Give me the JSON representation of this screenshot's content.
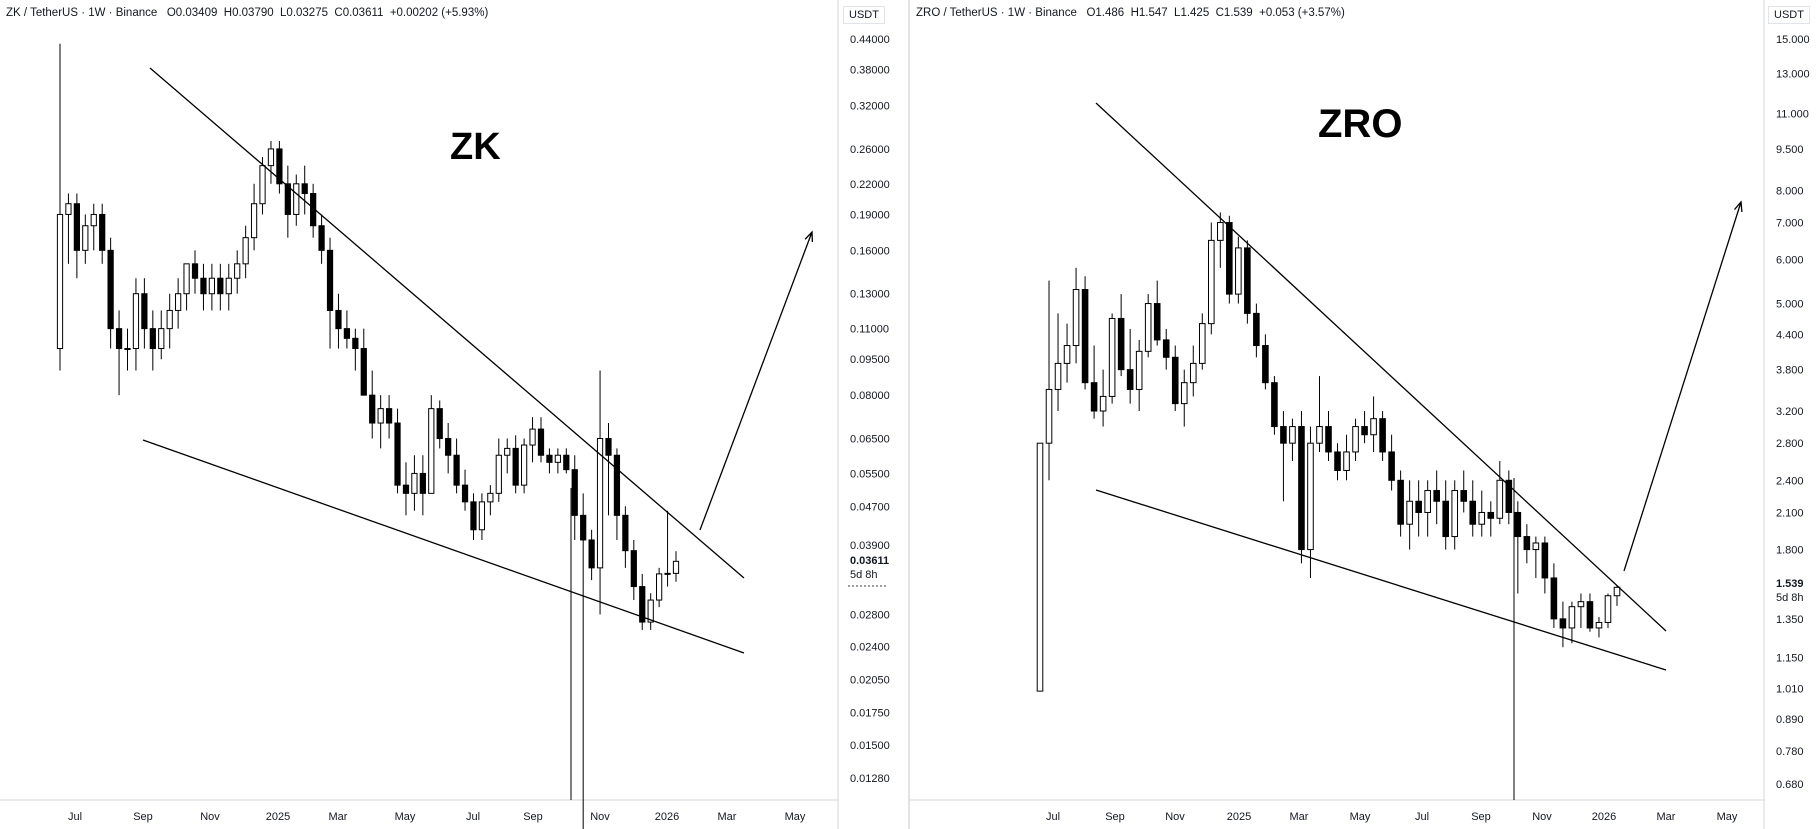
{
  "charts": [
    {
      "id": "left",
      "header": {
        "symbol": "ZK / TetherUS · 1W · Binance",
        "o": "O0.03409",
        "h": "H0.03790",
        "l": "L0.03275",
        "c": "C0.03611",
        "chg": "+0.00202 (+5.93%)"
      },
      "big_label": "ZK",
      "currency": "USDT",
      "last_price": "0.03611",
      "countdown": "5d 8h"
    },
    {
      "id": "right",
      "header": {
        "symbol": "ZRO / TetherUS · 1W · Binance",
        "o": "O1.486",
        "h": "H1.547",
        "l": "L1.425",
        "c": "C1.539",
        "chg": "+0.053 (+3.57%)"
      },
      "big_label": "ZRO",
      "currency": "USDT",
      "last_price": "1.539",
      "countdown": "5d 8h"
    }
  ],
  "chart_data": [
    {
      "type": "candlestick",
      "title": "ZK / TetherUS · 1W · Binance",
      "scale": "log",
      "y_ticks": [
        "0.44000",
        "0.38000",
        "0.32000",
        "0.26000",
        "0.22000",
        "0.19000",
        "0.16000",
        "0.13000",
        "0.11000",
        "0.09500",
        "0.08000",
        "0.06500",
        "0.05500",
        "0.04700",
        "0.03900",
        "0.02800",
        "0.02400",
        "0.02050",
        "0.01750",
        "0.01500",
        "0.01280"
      ],
      "x_ticks": [
        "Jul",
        "Sep",
        "Nov",
        "2025",
        "Mar",
        "May",
        "Jul",
        "Sep",
        "Nov",
        "2026",
        "Mar",
        "May"
      ],
      "ohlc": [
        [
          0.1,
          0.43,
          0.09,
          0.19
        ],
        [
          0.19,
          0.21,
          0.15,
          0.2
        ],
        [
          0.2,
          0.21,
          0.14,
          0.16
        ],
        [
          0.16,
          0.19,
          0.15,
          0.18
        ],
        [
          0.18,
          0.2,
          0.16,
          0.19
        ],
        [
          0.19,
          0.2,
          0.15,
          0.16
        ],
        [
          0.16,
          0.17,
          0.1,
          0.11
        ],
        [
          0.11,
          0.12,
          0.08,
          0.1
        ],
        [
          0.1,
          0.11,
          0.09,
          0.1
        ],
        [
          0.1,
          0.14,
          0.09,
          0.13
        ],
        [
          0.13,
          0.14,
          0.1,
          0.11
        ],
        [
          0.11,
          0.12,
          0.09,
          0.1
        ],
        [
          0.1,
          0.12,
          0.095,
          0.11
        ],
        [
          0.11,
          0.13,
          0.1,
          0.12
        ],
        [
          0.12,
          0.14,
          0.11,
          0.13
        ],
        [
          0.13,
          0.15,
          0.12,
          0.15
        ],
        [
          0.15,
          0.16,
          0.13,
          0.14
        ],
        [
          0.14,
          0.15,
          0.12,
          0.13
        ],
        [
          0.13,
          0.15,
          0.12,
          0.14
        ],
        [
          0.14,
          0.15,
          0.12,
          0.13
        ],
        [
          0.13,
          0.15,
          0.12,
          0.14
        ],
        [
          0.14,
          0.16,
          0.13,
          0.15
        ],
        [
          0.15,
          0.18,
          0.14,
          0.17
        ],
        [
          0.17,
          0.22,
          0.16,
          0.2
        ],
        [
          0.2,
          0.25,
          0.19,
          0.24
        ],
        [
          0.24,
          0.27,
          0.22,
          0.26
        ],
        [
          0.26,
          0.27,
          0.21,
          0.22
        ],
        [
          0.22,
          0.24,
          0.17,
          0.19
        ],
        [
          0.19,
          0.23,
          0.18,
          0.22
        ],
        [
          0.22,
          0.24,
          0.19,
          0.21
        ],
        [
          0.21,
          0.22,
          0.17,
          0.18
        ],
        [
          0.18,
          0.19,
          0.15,
          0.16
        ],
        [
          0.16,
          0.17,
          0.1,
          0.12
        ],
        [
          0.12,
          0.13,
          0.1,
          0.11
        ],
        [
          0.11,
          0.12,
          0.1,
          0.105
        ],
        [
          0.105,
          0.11,
          0.09,
          0.1
        ],
        [
          0.1,
          0.11,
          0.08,
          0.08
        ],
        [
          0.08,
          0.09,
          0.065,
          0.07
        ],
        [
          0.07,
          0.08,
          0.062,
          0.075
        ],
        [
          0.075,
          0.08,
          0.065,
          0.07
        ],
        [
          0.07,
          0.075,
          0.05,
          0.052
        ],
        [
          0.052,
          0.058,
          0.045,
          0.05
        ],
        [
          0.05,
          0.06,
          0.046,
          0.055
        ],
        [
          0.055,
          0.06,
          0.045,
          0.05
        ],
        [
          0.05,
          0.08,
          0.05,
          0.075
        ],
        [
          0.075,
          0.078,
          0.062,
          0.065
        ],
        [
          0.065,
          0.07,
          0.055,
          0.06
        ],
        [
          0.06,
          0.065,
          0.05,
          0.052
        ],
        [
          0.052,
          0.056,
          0.046,
          0.048
        ],
        [
          0.048,
          0.05,
          0.04,
          0.042
        ],
        [
          0.042,
          0.05,
          0.04,
          0.048
        ],
        [
          0.048,
          0.052,
          0.045,
          0.05
        ],
        [
          0.05,
          0.065,
          0.048,
          0.06
        ],
        [
          0.06,
          0.065,
          0.055,
          0.062
        ],
        [
          0.062,
          0.066,
          0.05,
          0.052
        ],
        [
          0.052,
          0.065,
          0.05,
          0.063
        ],
        [
          0.063,
          0.072,
          0.058,
          0.068
        ],
        [
          0.068,
          0.072,
          0.058,
          0.06
        ],
        [
          0.06,
          0.062,
          0.055,
          0.058
        ],
        [
          0.058,
          0.062,
          0.055,
          0.06
        ],
        [
          0.06,
          0.062,
          0.055,
          0.056
        ],
        [
          0.056,
          0.06,
          0.04,
          0.045
        ],
        [
          0.045,
          0.05,
          0.0085,
          0.04
        ],
        [
          0.04,
          0.042,
          0.033,
          0.035
        ],
        [
          0.035,
          0.09,
          0.028,
          0.065
        ],
        [
          0.065,
          0.07,
          0.045,
          0.06
        ],
        [
          0.06,
          0.062,
          0.04,
          0.045
        ],
        [
          0.045,
          0.047,
          0.035,
          0.038
        ],
        [
          0.038,
          0.04,
          0.03,
          0.032
        ],
        [
          0.032,
          0.034,
          0.026,
          0.027
        ],
        [
          0.027,
          0.031,
          0.026,
          0.03
        ],
        [
          0.03,
          0.035,
          0.029,
          0.034
        ],
        [
          0.034,
          0.046,
          0.032,
          0.03409
        ],
        [
          0.03409,
          0.0379,
          0.03275,
          0.03611
        ]
      ]
    },
    {
      "type": "candlestick",
      "title": "ZRO / TetherUS · 1W · Binance",
      "scale": "log",
      "y_ticks": [
        "15.000",
        "13.000",
        "11.000",
        "9.500",
        "8.000",
        "7.000",
        "6.000",
        "5.000",
        "4.400",
        "3.800",
        "3.200",
        "2.800",
        "2.400",
        "2.100",
        "1.800",
        "1.350",
        "1.150",
        "1.010",
        "0.890",
        "0.780",
        "0.680"
      ],
      "x_ticks": [
        "Jul",
        "Sep",
        "Nov",
        "2025",
        "Mar",
        "May",
        "Jul",
        "Sep",
        "Nov",
        "2026",
        "Mar",
        "May"
      ],
      "ohlc": [
        [
          1.0,
          2.8,
          1.0,
          2.8
        ],
        [
          2.8,
          5.5,
          2.4,
          3.5
        ],
        [
          3.5,
          4.8,
          3.2,
          3.9
        ],
        [
          3.9,
          4.6,
          3.6,
          4.2
        ],
        [
          4.2,
          5.8,
          3.9,
          5.3
        ],
        [
          5.3,
          5.6,
          3.5,
          3.6
        ],
        [
          3.6,
          4.2,
          3.1,
          3.2
        ],
        [
          3.2,
          3.8,
          3.0,
          3.4
        ],
        [
          3.4,
          4.8,
          3.3,
          4.7
        ],
        [
          4.7,
          5.2,
          3.7,
          3.8
        ],
        [
          3.8,
          4.5,
          3.3,
          3.5
        ],
        [
          3.5,
          4.3,
          3.2,
          4.1
        ],
        [
          4.1,
          5.2,
          4.0,
          5.0
        ],
        [
          5.0,
          5.5,
          4.2,
          4.3
        ],
        [
          4.3,
          4.5,
          3.8,
          4.0
        ],
        [
          4.0,
          4.2,
          3.2,
          3.3
        ],
        [
          3.3,
          3.8,
          3.0,
          3.6
        ],
        [
          3.6,
          4.2,
          3.4,
          3.9
        ],
        [
          3.9,
          4.8,
          3.8,
          4.6
        ],
        [
          4.6,
          7.0,
          4.4,
          6.5
        ],
        [
          6.5,
          7.3,
          5.8,
          7.0
        ],
        [
          7.0,
          7.2,
          5.0,
          5.2
        ],
        [
          5.2,
          6.6,
          5.0,
          6.3
        ],
        [
          6.3,
          6.5,
          4.6,
          4.8
        ],
        [
          4.8,
          5.0,
          4.0,
          4.2
        ],
        [
          4.2,
          4.4,
          3.5,
          3.6
        ],
        [
          3.6,
          3.7,
          2.9,
          3.0
        ],
        [
          3.0,
          3.2,
          2.2,
          2.8
        ],
        [
          2.8,
          3.1,
          2.6,
          3.0
        ],
        [
          3.0,
          3.2,
          1.7,
          1.8
        ],
        [
          1.8,
          3.0,
          1.6,
          2.8
        ],
        [
          2.8,
          3.7,
          2.7,
          3.0
        ],
        [
          3.0,
          3.2,
          2.6,
          2.7
        ],
        [
          2.7,
          2.8,
          2.4,
          2.5
        ],
        [
          2.5,
          2.9,
          2.4,
          2.7
        ],
        [
          2.7,
          3.1,
          2.6,
          3.0
        ],
        [
          3.0,
          3.2,
          2.8,
          2.9
        ],
        [
          2.9,
          3.4,
          2.7,
          3.1
        ],
        [
          3.1,
          3.2,
          2.6,
          2.7
        ],
        [
          2.7,
          2.9,
          2.3,
          2.4
        ],
        [
          2.4,
          2.5,
          1.9,
          2.0
        ],
        [
          2.0,
          2.4,
          1.8,
          2.2
        ],
        [
          2.2,
          2.4,
          1.9,
          2.1
        ],
        [
          2.1,
          2.4,
          1.9,
          2.3
        ],
        [
          2.3,
          2.5,
          2.0,
          2.2
        ],
        [
          2.2,
          2.4,
          1.8,
          1.9
        ],
        [
          1.9,
          2.4,
          1.8,
          2.3
        ],
        [
          2.3,
          2.5,
          2.1,
          2.2
        ],
        [
          2.2,
          2.4,
          1.9,
          2.0
        ],
        [
          2.0,
          2.3,
          1.9,
          2.1
        ],
        [
          2.1,
          2.2,
          1.9,
          2.05
        ],
        [
          2.05,
          2.6,
          2.0,
          2.4
        ],
        [
          2.4,
          2.5,
          2.0,
          2.1
        ],
        [
          2.1,
          2.2,
          1.5,
          1.9
        ],
        [
          1.9,
          2.0,
          1.7,
          1.8
        ],
        [
          1.8,
          1.9,
          1.6,
          1.85
        ],
        [
          1.85,
          1.9,
          1.5,
          1.6
        ],
        [
          1.6,
          1.7,
          1.3,
          1.35
        ],
        [
          1.35,
          1.45,
          1.2,
          1.3
        ],
        [
          1.3,
          1.45,
          1.22,
          1.42
        ],
        [
          1.42,
          1.5,
          1.3,
          1.45
        ],
        [
          1.45,
          1.5,
          1.28,
          1.3
        ],
        [
          1.3,
          1.36,
          1.25,
          1.33
        ],
        [
          1.33,
          1.5,
          1.3,
          1.486
        ],
        [
          1.486,
          1.547,
          1.425,
          1.539
        ]
      ]
    }
  ]
}
